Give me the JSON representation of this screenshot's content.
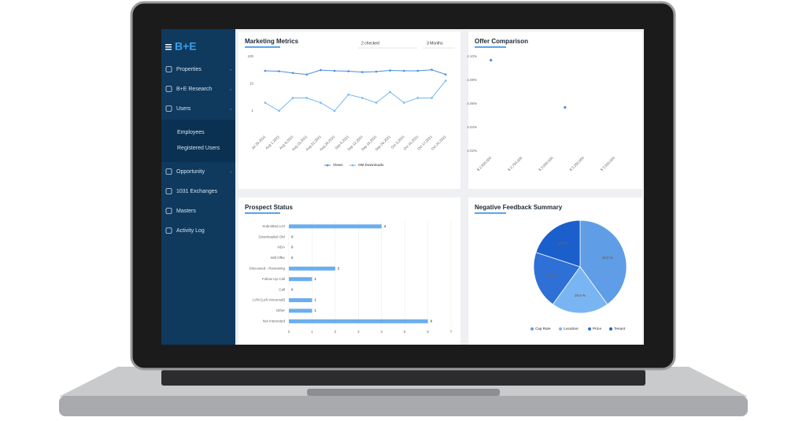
{
  "sidebar": {
    "logo": "B+E",
    "menu": [
      "Properties",
      "B+E Research",
      "Users",
      "Employees",
      "Registered Users",
      "Opportunity",
      "1031 Exchanges",
      "Masters",
      "Activity Log"
    ]
  },
  "chart_data": [
    {
      "type": "line",
      "title": "Marketing Metrics",
      "controls": [
        "2 checked",
        "3 Months"
      ],
      "log_scale": true,
      "grid": false,
      "legend": "bottom",
      "categories": [
        "Jul 25,2021",
        "Aug 1,2021",
        "Aug 8,2021",
        "Aug 15,2021",
        "Aug 22,2021",
        "Aug 29,2021",
        "Sep 5,2021",
        "Sep 12,2021",
        "Sep 19,2021",
        "Sep 26,2021",
        "Oct 3,2021",
        "Oct 10,2021",
        "Oct 17,2021",
        "Oct 24,2021"
      ],
      "series": [
        {
          "name": "Views",
          "color": "#4a8fdc",
          "values": [
            30,
            29,
            25,
            22,
            32,
            30,
            29,
            27,
            28,
            31,
            30,
            30,
            33,
            22
          ]
        },
        {
          "name": "OM Downloads",
          "color": "#74b8f0",
          "values": [
            2,
            1,
            3,
            3,
            2,
            1,
            4,
            3,
            2,
            5,
            2,
            3,
            3,
            13
          ]
        }
      ],
      "ylim": [
        0.2,
        100
      ],
      "yticks": [
        1,
        10,
        100
      ]
    },
    {
      "type": "scatter",
      "title": "Offer Comparison",
      "color": "#4a8fdc",
      "x": [
        2500000,
        3100000
      ],
      "values": [
        4.097,
        4.057
      ],
      "xlim": [
        2400000,
        3700000
      ],
      "xticks": [
        {
          "value": 2500000,
          "label": "$ 2,500,000"
        },
        {
          "value": 2750000,
          "label": "$ 2,750,000"
        },
        {
          "value": 3000000,
          "label": "$ 3,000,000"
        },
        {
          "value": 3250000,
          "label": "$ 3,250,000"
        },
        {
          "value": 3500000,
          "label": "$ 3,500,000"
        }
      ],
      "ylim": [
        4.02,
        4.1
      ],
      "yticks": [
        {
          "value": 4.1,
          "label": "4.10%"
        },
        {
          "value": 4.08,
          "label": "4.08%"
        },
        {
          "value": 4.06,
          "label": "4.06%"
        },
        {
          "value": 4.04,
          "label": "4.04%"
        },
        {
          "value": 4.02,
          "label": "4.02%"
        }
      ]
    },
    {
      "type": "bar",
      "orientation": "horizontal",
      "title": "Prospect Status",
      "color": "#6aaef0",
      "grid": true,
      "categories": [
        "Submitted LOI",
        "Downloaded OM",
        "NDA",
        "Will Offer",
        "Discussed - Reviewing",
        "Follow Up Call",
        "Call",
        "LVM (Left Voicemail)",
        "Other",
        "Not Interested"
      ],
      "values": [
        4,
        0,
        0,
        0,
        2,
        1,
        0,
        1,
        1,
        6
      ],
      "xlim": [
        0,
        7
      ],
      "xticks": [
        0,
        1,
        2,
        3,
        4,
        5,
        6,
        7
      ]
    },
    {
      "type": "pie",
      "title": "Negative Feedback Summary",
      "legend": "bottom",
      "categories": [
        "Cap Rate",
        "Location",
        "Price",
        "Tenant"
      ],
      "values": [
        40,
        20,
        20,
        20
      ],
      "value_labels": [
        "40.0 %",
        "20.0 %",
        "20.0 %",
        "20.0 %"
      ],
      "colors": [
        "#5f9de6",
        "#7ab5f3",
        "#2e70d6",
        "#1b5fcc"
      ]
    }
  ]
}
